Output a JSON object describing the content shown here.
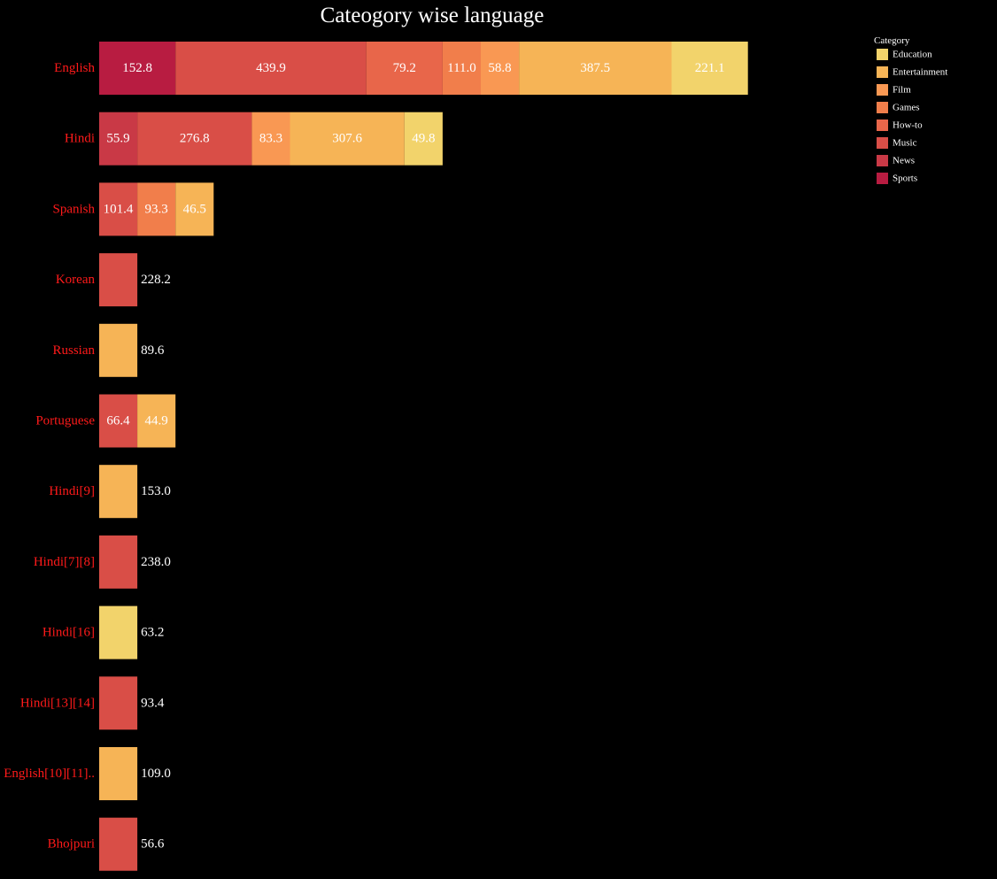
{
  "chart_data": {
    "type": "bar",
    "orientation": "horizontal",
    "stacked": true,
    "title": "Cateogory wise language",
    "xlabel": "",
    "ylabel": "",
    "grid": false,
    "legend_position": "top-right",
    "legend_title": "Category",
    "categories": [
      "English",
      "Hindi",
      "Spanish",
      "Korean",
      "Russian",
      "Portuguese",
      "Hindi[9]",
      "Hindi[7][8]",
      "Hindi[16]",
      "Hindi[13][14]",
      "English[10][11]..",
      "Bhojpuri"
    ],
    "series": [
      {
        "name": "Sports",
        "color": "#b81c41",
        "values": [
          152.8,
          0,
          0,
          0,
          0,
          0,
          0,
          0,
          0,
          0,
          0,
          0
        ]
      },
      {
        "name": "News",
        "color": "#c93946",
        "values": [
          0,
          55.9,
          0,
          0,
          0,
          0,
          0,
          0,
          0,
          0,
          0,
          0
        ]
      },
      {
        "name": "Music",
        "color": "#d94e47",
        "values": [
          439.9,
          276.8,
          101.4,
          228.2,
          0,
          66.4,
          0,
          238.0,
          0,
          93.4,
          0,
          56.6
        ]
      },
      {
        "name": "How-to",
        "color": "#e8664a",
        "values": [
          79.2,
          0,
          0,
          0,
          0,
          0,
          0,
          0,
          0,
          0,
          0,
          0
        ]
      },
      {
        "name": "Games",
        "color": "#f17e4b",
        "values": [
          111.0,
          0,
          93.3,
          0,
          0,
          0,
          0,
          0,
          0,
          0,
          0,
          0
        ]
      },
      {
        "name": "Film",
        "color": "#f99853",
        "values": [
          58.8,
          83.3,
          0,
          0,
          0,
          0,
          0,
          0,
          0,
          0,
          0,
          0
        ]
      },
      {
        "name": "Entertainment",
        "color": "#f6b456",
        "values": [
          387.5,
          307.6,
          46.5,
          0,
          89.6,
          44.9,
          153.0,
          0,
          0,
          0,
          109.0,
          0
        ]
      },
      {
        "name": "Education",
        "color": "#f2d36b",
        "values": [
          221.1,
          49.8,
          0,
          0,
          0,
          0,
          0,
          0,
          63.2,
          0,
          0,
          0
        ]
      }
    ],
    "legend_order": [
      "Education",
      "Entertainment",
      "Film",
      "Games",
      "How-to",
      "Music",
      "News",
      "Sports"
    ],
    "colors": {
      "background": "#000000",
      "title": "#ffffff",
      "category_label": "#ff1a1a",
      "value_label": "#ffffff"
    }
  }
}
